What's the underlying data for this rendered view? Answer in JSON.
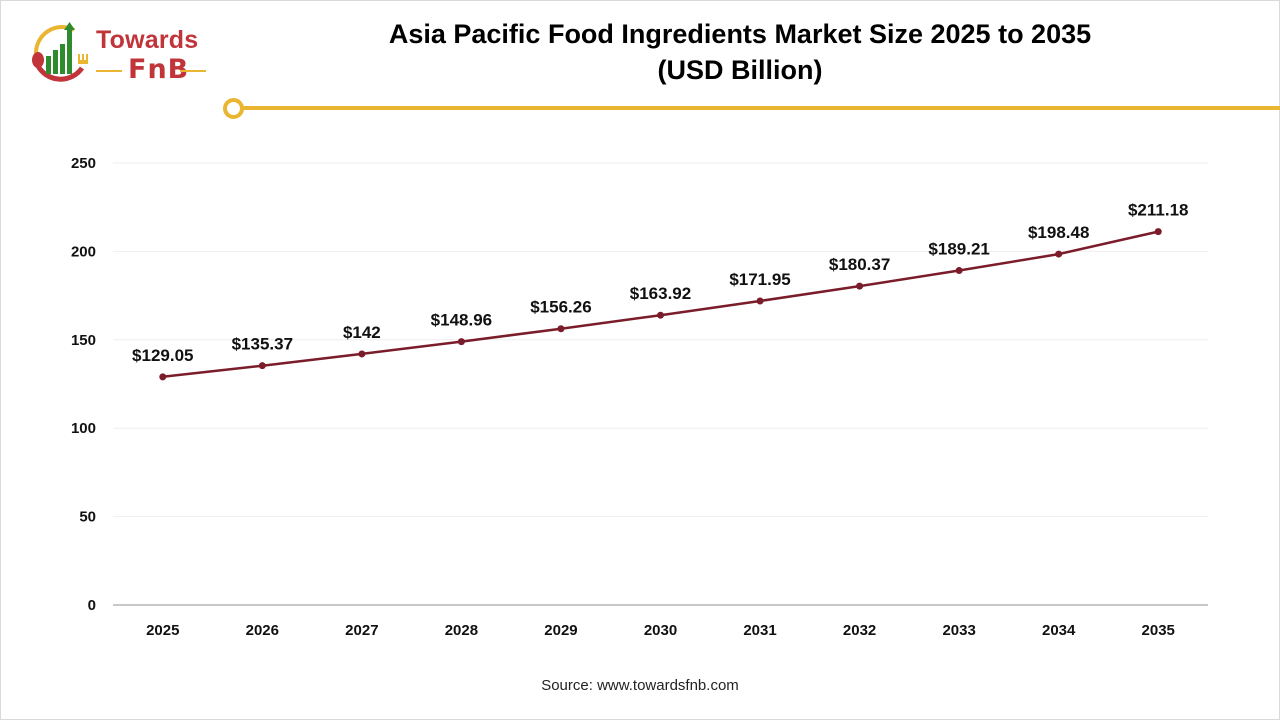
{
  "brand": {
    "name_top": "Towards",
    "name_bottom": "FnB",
    "colors": {
      "red": "#c0343a",
      "green": "#2e8b2e",
      "gold": "#eab530"
    }
  },
  "title_line1": "Asia Pacific Food Ingredients Market Size 2025 to 2035",
  "title_line2": "(USD Billion)",
  "source": "Source: www.towardsfnb.com",
  "chart_data": {
    "type": "line",
    "title": "Asia Pacific Food Ingredients Market Size 2025 to 2035 (USD Billion)",
    "xlabel": "",
    "ylabel": "",
    "categories": [
      "2025",
      "2026",
      "2027",
      "2028",
      "2029",
      "2030",
      "2031",
      "2032",
      "2033",
      "2034",
      "2035"
    ],
    "series": [
      {
        "name": "Market Size (USD Billion)",
        "values": [
          129.05,
          135.37,
          142,
          148.96,
          156.26,
          163.92,
          171.95,
          180.37,
          189.21,
          198.48,
          211.18
        ],
        "labels": [
          "$129.05",
          "$135.37",
          "$142",
          "$148.96",
          "$156.26",
          "$163.92",
          "$171.95",
          "$180.37",
          "$189.21",
          "$198.48",
          "$211.18"
        ],
        "color": "#7b1c2a"
      }
    ],
    "yticks": [
      "0",
      "50",
      "100",
      "150",
      "200",
      "250"
    ],
    "ylim": [
      0,
      250
    ],
    "grid": true,
    "legend": "none"
  }
}
